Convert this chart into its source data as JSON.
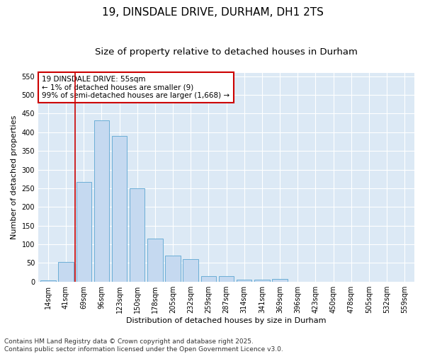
{
  "title": "19, DINSDALE DRIVE, DURHAM, DH1 2TS",
  "subtitle": "Size of property relative to detached houses in Durham",
  "xlabel": "Distribution of detached houses by size in Durham",
  "ylabel": "Number of detached properties",
  "categories": [
    "14sqm",
    "41sqm",
    "69sqm",
    "96sqm",
    "123sqm",
    "150sqm",
    "178sqm",
    "205sqm",
    "232sqm",
    "259sqm",
    "287sqm",
    "314sqm",
    "341sqm",
    "369sqm",
    "396sqm",
    "423sqm",
    "450sqm",
    "478sqm",
    "505sqm",
    "532sqm",
    "559sqm"
  ],
  "values": [
    4,
    52,
    267,
    432,
    390,
    250,
    116,
    70,
    60,
    14,
    14,
    5,
    5,
    7,
    0,
    0,
    0,
    0,
    0,
    0,
    0
  ],
  "bar_color": "#c5d9f0",
  "bar_edge_color": "#6baed6",
  "vline_x": 1.5,
  "vline_color": "#cc0000",
  "annotation_box_color": "#cc0000",
  "annotation_text": "19 DINSDALE DRIVE: 55sqm\n← 1% of detached houses are smaller (9)\n99% of semi-detached houses are larger (1,668) →",
  "bg_color": "#dce9f5",
  "grid_color": "#ffffff",
  "fig_bg_color": "#ffffff",
  "ylim": [
    0,
    560
  ],
  "yticks": [
    0,
    50,
    100,
    150,
    200,
    250,
    300,
    350,
    400,
    450,
    500,
    550
  ],
  "footer": "Contains HM Land Registry data © Crown copyright and database right 2025.\nContains public sector information licensed under the Open Government Licence v3.0.",
  "title_fontsize": 11,
  "subtitle_fontsize": 9.5,
  "label_fontsize": 8,
  "tick_fontsize": 7,
  "annotation_fontsize": 7.5,
  "footer_fontsize": 6.5
}
